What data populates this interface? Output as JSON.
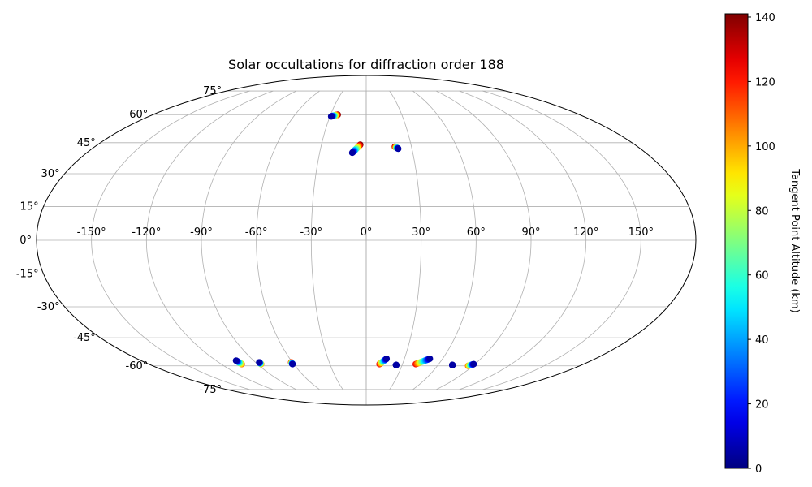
{
  "chart_data": {
    "type": "scatter",
    "projection": "mollweide",
    "title": "Solar occultations for diffraction order 188",
    "xlabel": "",
    "ylabel": "",
    "grid": true,
    "lon_ticks": [
      -150,
      -120,
      -90,
      -60,
      -30,
      0,
      30,
      60,
      90,
      120,
      150
    ],
    "lat_ticks": [
      -75,
      -60,
      -45,
      -30,
      -15,
      0,
      15,
      30,
      45,
      60,
      75
    ],
    "tick_suffix": "°",
    "colorbar": {
      "label": "Tangent Point Altitude (km)",
      "colormap": "jet",
      "range": [
        0,
        141
      ],
      "ticks": [
        0,
        20,
        40,
        60,
        80,
        100,
        120,
        140
      ]
    },
    "occultations": [
      {
        "lon_start": -29,
        "lat_start": 59,
        "alt_start": 5,
        "lon_end": -24,
        "lat_end": 60,
        "alt_end": 141
      },
      {
        "lon_start": -9,
        "lat_start": 40,
        "alt_start": 5,
        "lon_end": -4,
        "lat_end": 44,
        "alt_end": 141
      },
      {
        "lon_start": 21,
        "lat_start": 42,
        "alt_start": 5,
        "lon_end": 19,
        "lat_end": 43,
        "alt_end": 141
      },
      {
        "lon_start": -104,
        "lat_start": -57,
        "alt_start": 5,
        "lon_end": -103,
        "lat_end": -59,
        "alt_end": 110
      },
      {
        "lon_start": -87,
        "lat_start": -58,
        "alt_start": 5,
        "lon_end": -87,
        "lat_end": -59,
        "alt_end": 110
      },
      {
        "lon_start": -61,
        "lat_start": -59,
        "alt_start": 5,
        "lon_end": -61,
        "lat_end": -58,
        "alt_end": 125
      },
      {
        "lon_start": 16,
        "lat_start": -56,
        "alt_start": 5,
        "lon_end": 11,
        "lat_end": -59,
        "alt_end": 125
      },
      {
        "lon_start": 25,
        "lat_start": -59.5,
        "alt_start": 5,
        "lon_end": 25,
        "lat_end": -59.5,
        "alt_end": 5
      },
      {
        "lon_start": 50,
        "lat_start": -56,
        "alt_start": 5,
        "lon_end": 41,
        "lat_end": -59,
        "alt_end": 125
      },
      {
        "lon_start": 72,
        "lat_start": -59.5,
        "alt_start": 5,
        "lon_end": 72,
        "lat_end": -59.5,
        "alt_end": 5
      },
      {
        "lon_start": 89,
        "lat_start": -59,
        "alt_start": 5,
        "lon_end": 86,
        "lat_end": -60,
        "alt_end": 110
      }
    ]
  }
}
